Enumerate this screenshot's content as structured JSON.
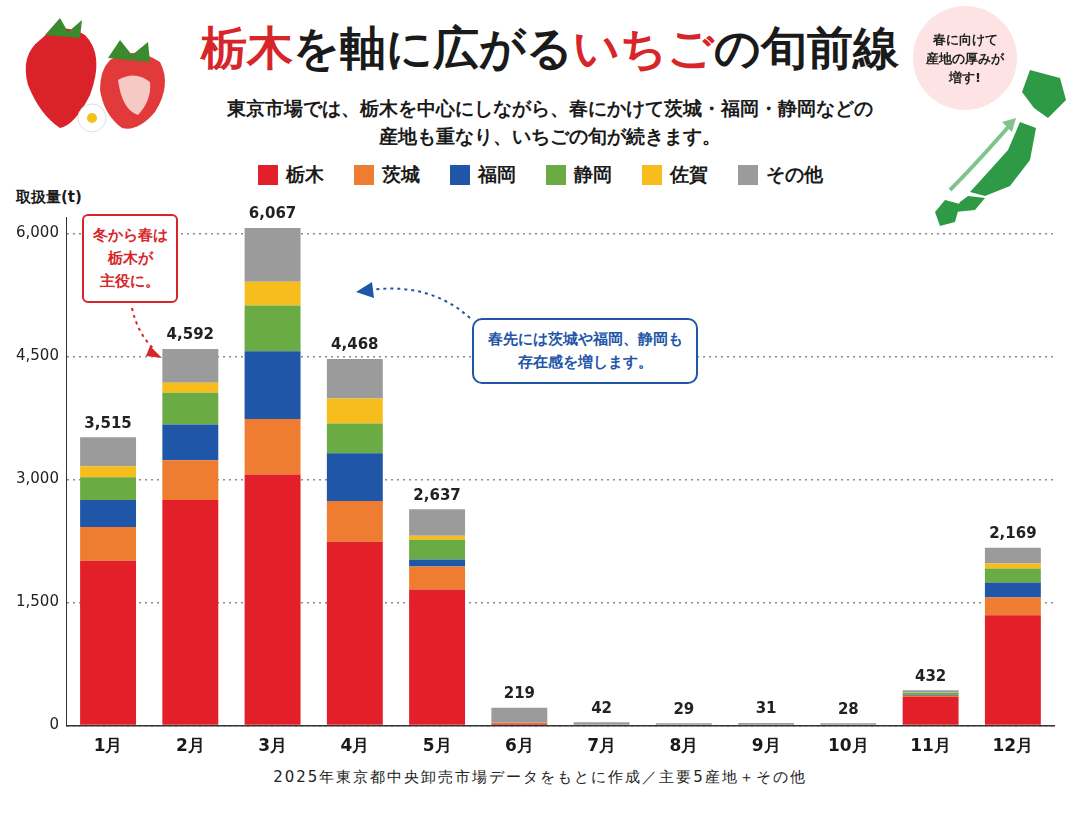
{
  "chart_data": {
    "type": "bar",
    "title": "栃木を軸に広がるいちごの旬前線",
    "title_highlights": [
      "栃木",
      "いちご"
    ],
    "subtitle": [
      "東京市場では、栃木を中心にしながら、春にかけて茨城・福岡・静岡などの",
      "産地も重なり、いちごの旬が続きます。"
    ],
    "y_label": "取扱量(t)",
    "categories": [
      "1月",
      "2月",
      "3月",
      "4月",
      "5月",
      "6月",
      "7月",
      "8月",
      "9月",
      "10月",
      "11月",
      "12月"
    ],
    "series": [
      {
        "name": "栃木",
        "color": "#e3202a",
        "values": [
          2010,
          2750,
          3060,
          2240,
          1660,
          25,
          0,
          0,
          0,
          0,
          350,
          1345
        ]
      },
      {
        "name": "茨城",
        "color": "#ee7d31",
        "values": [
          412,
          485,
          679,
          497,
          279,
          10,
          0,
          0,
          0,
          0,
          15,
          218
        ]
      },
      {
        "name": "福岡",
        "color": "#1f56a8",
        "values": [
          327,
          436,
          824,
          582,
          85,
          0,
          0,
          0,
          0,
          0,
          10,
          182
        ]
      },
      {
        "name": "静岡",
        "color": "#6aac43",
        "values": [
          279,
          388,
          558,
          364,
          242,
          5,
          0,
          0,
          0,
          0,
          25,
          170
        ]
      },
      {
        "name": "佐賀",
        "color": "#f6bd1c",
        "values": [
          133,
          121,
          291,
          303,
          48,
          0,
          0,
          0,
          0,
          0,
          5,
          61
        ]
      },
      {
        "name": "その他",
        "color": "#9b9b9b",
        "values": [
          354,
          412,
          655,
          482,
          323,
          179,
          42,
          29,
          31,
          28,
          27,
          193
        ]
      }
    ],
    "totals": [
      3515,
      4592,
      6067,
      4468,
      2637,
      219,
      42,
      29,
      31,
      28,
      432,
      2169
    ],
    "total_labels": [
      "3,515",
      "4,592",
      "6,067",
      "4,468",
      "2,637",
      "219",
      "42",
      "29",
      "31",
      "28",
      "432",
      "2,169"
    ],
    "ylim": [
      0,
      6200
    ],
    "yticks": [
      0,
      {
        "value": 1500,
        "label": "1,500"
      },
      {
        "value": 3000,
        "label": "3,000"
      },
      {
        "value": 4500,
        "label": "4,500"
      },
      {
        "value": 6000,
        "label": "6,000"
      }
    ],
    "stacked": true,
    "grid": true,
    "legend": "top",
    "annotations": [
      [
        "冬から春は",
        "栃木が",
        "主役に。"
      ],
      [
        "春先には茨城や福岡、静岡も",
        "存在感を増します。"
      ],
      [
        "春に向けて",
        "産地の厚みが",
        "増す!"
      ]
    ],
    "footer": "2025年東京都中央卸売市場データをもとに作成／主要5産地＋その他"
  }
}
